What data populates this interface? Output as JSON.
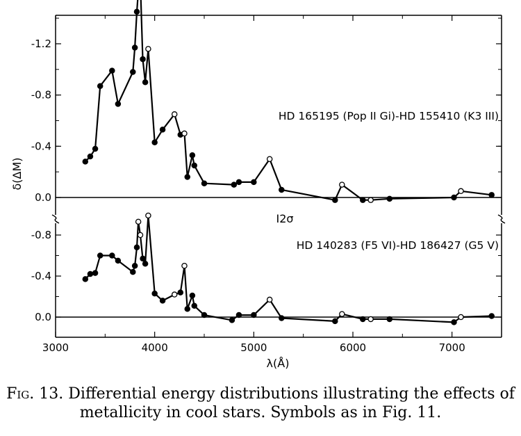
{
  "chart_data": {
    "type": "line",
    "xlabel": "λ(Å)",
    "ylabel": "δ(ΔM)",
    "xlim": [
      3000,
      7500
    ],
    "x_ticks": [
      "3000",
      "4000",
      "5000",
      "6000",
      "7000"
    ],
    "panels": [
      {
        "name": "upper",
        "label": "HD 165195 (Pop II Gi)-HD 155410 (K3 III)",
        "ylim": [
          0.0,
          -1.8
        ],
        "y_ticks": [
          "-1.2",
          "-0.8",
          "-0.4",
          "0.0"
        ],
        "points": [
          {
            "x": 3300,
            "y": -0.28,
            "filled": true
          },
          {
            "x": 3350,
            "y": -0.32,
            "filled": true
          },
          {
            "x": 3400,
            "y": -0.38,
            "filled": true
          },
          {
            "x": 3450,
            "y": -0.87,
            "filled": true
          },
          {
            "x": 3570,
            "y": -0.99,
            "filled": true
          },
          {
            "x": 3630,
            "y": -0.73,
            "filled": true
          },
          {
            "x": 3780,
            "y": -0.98,
            "filled": true
          },
          {
            "x": 3800,
            "y": -1.17,
            "filled": true
          },
          {
            "x": 3820,
            "y": -1.45,
            "filled": true
          },
          {
            "x": 3835,
            "y": -1.61,
            "filled": false
          },
          {
            "x": 3855,
            "y": -1.68,
            "filled": false
          },
          {
            "x": 3880,
            "y": -1.08,
            "filled": true
          },
          {
            "x": 3905,
            "y": -0.9,
            "filled": true
          },
          {
            "x": 3935,
            "y": -1.16,
            "filled": false
          },
          {
            "x": 4000,
            "y": -0.43,
            "filled": true
          },
          {
            "x": 4080,
            "y": -0.53,
            "filled": true
          },
          {
            "x": 4200,
            "y": -0.65,
            "filled": false
          },
          {
            "x": 4260,
            "y": -0.49,
            "filled": true
          },
          {
            "x": 4300,
            "y": -0.5,
            "filled": false
          },
          {
            "x": 4330,
            "y": -0.16,
            "filled": true
          },
          {
            "x": 4380,
            "y": -0.33,
            "filled": true
          },
          {
            "x": 4400,
            "y": -0.25,
            "filled": true
          },
          {
            "x": 4500,
            "y": -0.11,
            "filled": true
          },
          {
            "x": 4800,
            "y": -0.1,
            "filled": true
          },
          {
            "x": 4850,
            "y": -0.12,
            "filled": true
          },
          {
            "x": 5000,
            "y": -0.12,
            "filled": true
          },
          {
            "x": 5160,
            "y": -0.3,
            "filled": false
          },
          {
            "x": 5280,
            "y": -0.06,
            "filled": true
          },
          {
            "x": 5820,
            "y": 0.02,
            "filled": true
          },
          {
            "x": 5890,
            "y": -0.1,
            "filled": false
          },
          {
            "x": 6100,
            "y": 0.02,
            "filled": true
          },
          {
            "x": 6180,
            "y": 0.02,
            "filled": false
          },
          {
            "x": 6370,
            "y": 0.01,
            "filled": true
          },
          {
            "x": 7020,
            "y": 0.0,
            "filled": true
          },
          {
            "x": 7090,
            "y": -0.05,
            "filled": false
          },
          {
            "x": 7400,
            "y": -0.02,
            "filled": true
          }
        ]
      },
      {
        "name": "lower",
        "label": "HD 140283 (F5 VI)-HD 186427 (G5 V)",
        "ylim": [
          0.2,
          -1.0
        ],
        "y_ticks": [
          "-0.8",
          "-0.4",
          "0.0"
        ],
        "points": [
          {
            "x": 3300,
            "y": -0.37,
            "filled": true
          },
          {
            "x": 3350,
            "y": -0.42,
            "filled": true
          },
          {
            "x": 3400,
            "y": -0.43,
            "filled": true
          },
          {
            "x": 3450,
            "y": -0.6,
            "filled": true
          },
          {
            "x": 3570,
            "y": -0.6,
            "filled": true
          },
          {
            "x": 3630,
            "y": -0.55,
            "filled": true
          },
          {
            "x": 3780,
            "y": -0.44,
            "filled": true
          },
          {
            "x": 3800,
            "y": -0.5,
            "filled": true
          },
          {
            "x": 3820,
            "y": -0.68,
            "filled": true
          },
          {
            "x": 3835,
            "y": -0.93,
            "filled": false
          },
          {
            "x": 3855,
            "y": -0.8,
            "filled": false
          },
          {
            "x": 3880,
            "y": -0.57,
            "filled": true
          },
          {
            "x": 3905,
            "y": -0.52,
            "filled": true
          },
          {
            "x": 3935,
            "y": -0.99,
            "filled": false
          },
          {
            "x": 4000,
            "y": -0.23,
            "filled": true
          },
          {
            "x": 4080,
            "y": -0.16,
            "filled": true
          },
          {
            "x": 4200,
            "y": -0.22,
            "filled": false
          },
          {
            "x": 4260,
            "y": -0.24,
            "filled": true
          },
          {
            "x": 4300,
            "y": -0.5,
            "filled": false
          },
          {
            "x": 4330,
            "y": -0.08,
            "filled": true
          },
          {
            "x": 4380,
            "y": -0.21,
            "filled": true
          },
          {
            "x": 4400,
            "y": -0.11,
            "filled": true
          },
          {
            "x": 4500,
            "y": -0.02,
            "filled": true
          },
          {
            "x": 4780,
            "y": 0.03,
            "filled": true
          },
          {
            "x": 4850,
            "y": -0.02,
            "filled": true
          },
          {
            "x": 5000,
            "y": -0.02,
            "filled": true
          },
          {
            "x": 5160,
            "y": -0.17,
            "filled": false
          },
          {
            "x": 5280,
            "y": 0.01,
            "filled": true
          },
          {
            "x": 5820,
            "y": 0.04,
            "filled": true
          },
          {
            "x": 5890,
            "y": -0.03,
            "filled": false
          },
          {
            "x": 6100,
            "y": 0.02,
            "filled": true
          },
          {
            "x": 6180,
            "y": 0.02,
            "filled": false
          },
          {
            "x": 6370,
            "y": 0.02,
            "filled": true
          },
          {
            "x": 7020,
            "y": 0.05,
            "filled": true
          },
          {
            "x": 7090,
            "y": 0.0,
            "filled": false
          },
          {
            "x": 7400,
            "y": -0.01,
            "filled": true
          }
        ]
      }
    ],
    "error_bar_label": "I2σ"
  },
  "caption": {
    "figure": "Fig. 13.",
    "text": "Differential energy distributions illustrating the effects of metallicity in cool stars. Symbols as in Fig. 11."
  }
}
